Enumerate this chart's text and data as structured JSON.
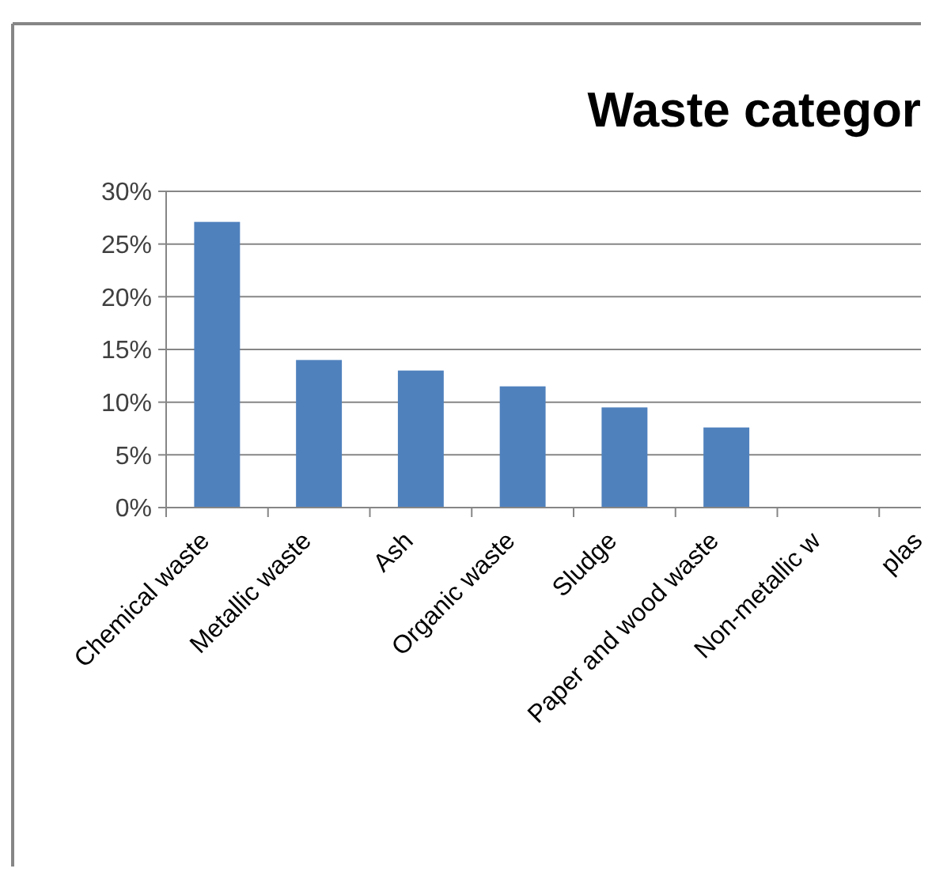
{
  "chart_data": {
    "type": "bar",
    "title": "Waste categor",
    "categories": [
      "Chemical waste",
      "Metallic waste",
      "Ash",
      "Organic waste",
      "Sludge",
      "Paper and wood waste",
      "Non-metallic w",
      "plas"
    ],
    "values": [
      27.1,
      14,
      13,
      11.5,
      9.5,
      7.6,
      null,
      null
    ],
    "color": "#4f81bd",
    "ylim": [
      0,
      30
    ],
    "yticks": [
      {
        "value": 0,
        "label": "0%"
      },
      {
        "value": 5,
        "label": "5%"
      },
      {
        "value": 10,
        "label": "10%"
      },
      {
        "value": 15,
        "label": "15%"
      },
      {
        "value": 20,
        "label": "20%"
      },
      {
        "value": 25,
        "label": "25%"
      },
      {
        "value": 30,
        "label": "30%"
      }
    ],
    "grid": "y"
  }
}
